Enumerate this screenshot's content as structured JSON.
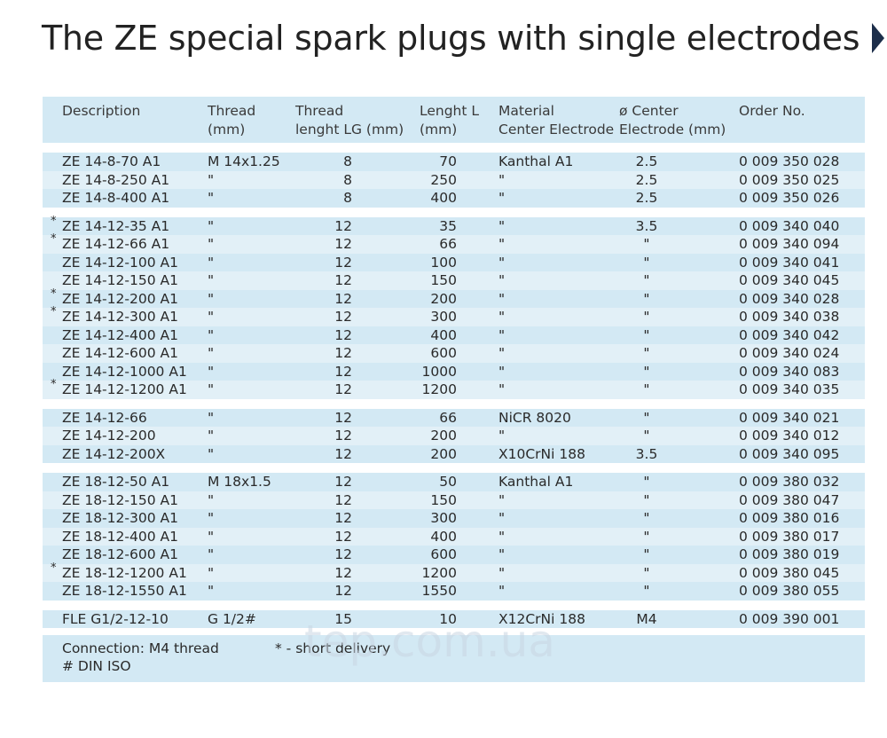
{
  "title": "The ZE special spark plugs with single electrodes",
  "watermark": "tep.com.ua",
  "headers": {
    "description": "Description",
    "thread": "Thread\n(mm)",
    "thread_length": "Thread\nlenght LG (mm)",
    "length": "Lenght L\n(mm)",
    "material": "Material\nCenter Electrode",
    "diameter": "ø Center\nElectrode (mm)",
    "order": "Order No."
  },
  "groups": [
    [
      {
        "star": "",
        "desc": "ZE 14-8-70 A1",
        "thread": "M 14x1.25",
        "lg": "8",
        "len": "70",
        "mat": "Kanthal A1",
        "dia": "2.5",
        "order": "0 009 350 028"
      },
      {
        "star": "",
        "desc": "ZE 14-8-250 A1",
        "thread": "\"",
        "lg": "8",
        "len": "250",
        "mat": "\"",
        "dia": "2.5",
        "order": "0 009 350 025"
      },
      {
        "star": "",
        "desc": "ZE 14-8-400 A1",
        "thread": "\"",
        "lg": "8",
        "len": "400",
        "mat": "\"",
        "dia": "2.5",
        "order": "0 009 350 026"
      }
    ],
    [
      {
        "star": "*",
        "desc": "ZE 14-12-35 A1",
        "thread": "\"",
        "lg": "12",
        "len": "35",
        "mat": "\"",
        "dia": "3.5",
        "order": "0 009 340 040"
      },
      {
        "star": "*",
        "desc": "ZE 14-12-66 A1",
        "thread": "\"",
        "lg": "12",
        "len": "66",
        "mat": "\"",
        "dia": "\"",
        "order": "0 009 340 094"
      },
      {
        "star": "",
        "desc": "ZE 14-12-100 A1",
        "thread": "\"",
        "lg": "12",
        "len": "100",
        "mat": "\"",
        "dia": "\"",
        "order": "0 009 340 041"
      },
      {
        "star": "",
        "desc": "ZE 14-12-150 A1",
        "thread": "\"",
        "lg": "12",
        "len": "150",
        "mat": "\"",
        "dia": "\"",
        "order": "0 009 340 045"
      },
      {
        "star": "*",
        "desc": "ZE 14-12-200 A1",
        "thread": "\"",
        "lg": "12",
        "len": "200",
        "mat": "\"",
        "dia": "\"",
        "order": "0 009 340 028"
      },
      {
        "star": "*",
        "desc": "ZE 14-12-300 A1",
        "thread": "\"",
        "lg": "12",
        "len": "300",
        "mat": "\"",
        "dia": "\"",
        "order": "0 009 340 038"
      },
      {
        "star": "",
        "desc": "ZE 14-12-400 A1",
        "thread": "\"",
        "lg": "12",
        "len": "400",
        "mat": "\"",
        "dia": "\"",
        "order": "0 009 340 042"
      },
      {
        "star": "",
        "desc": "ZE 14-12-600 A1",
        "thread": "\"",
        "lg": "12",
        "len": "600",
        "mat": "\"",
        "dia": "\"",
        "order": "0 009 340 024"
      },
      {
        "star": "",
        "desc": "ZE 14-12-1000 A1",
        "thread": "\"",
        "lg": "12",
        "len": "1000",
        "mat": "\"",
        "dia": "\"",
        "order": "0 009 340 083"
      },
      {
        "star": "*",
        "desc": "ZE 14-12-1200 A1",
        "thread": "\"",
        "lg": "12",
        "len": "1200",
        "mat": "\"",
        "dia": "\"",
        "order": "0 009 340 035"
      }
    ],
    [
      {
        "star": "",
        "desc": "ZE 14-12-66",
        "thread": "\"",
        "lg": "12",
        "len": "66",
        "mat": "NiCR 8020",
        "dia": "\"",
        "order": "0 009 340 021"
      },
      {
        "star": "",
        "desc": "ZE 14-12-200",
        "thread": "\"",
        "lg": "12",
        "len": "200",
        "mat": "\"",
        "dia": "\"",
        "order": "0 009 340 012"
      },
      {
        "star": "",
        "desc": "ZE 14-12-200X",
        "thread": "\"",
        "lg": "12",
        "len": "200",
        "mat": "X10CrNi 188",
        "dia": "3.5",
        "order": "0 009 340 095"
      }
    ],
    [
      {
        "star": "",
        "desc": "ZE 18-12-50 A1",
        "thread": "M 18x1.5",
        "lg": "12",
        "len": "50",
        "mat": "Kanthal A1",
        "dia": "\"",
        "order": "0 009 380 032"
      },
      {
        "star": "",
        "desc": "ZE 18-12-150 A1",
        "thread": "\"",
        "lg": "12",
        "len": "150",
        "mat": "\"",
        "dia": "\"",
        "order": "0 009 380 047"
      },
      {
        "star": "",
        "desc": "ZE 18-12-300 A1",
        "thread": "\"",
        "lg": "12",
        "len": "300",
        "mat": "\"",
        "dia": "\"",
        "order": "0 009 380 016"
      },
      {
        "star": "",
        "desc": "ZE 18-12-400 A1",
        "thread": "\"",
        "lg": "12",
        "len": "400",
        "mat": "\"",
        "dia": "\"",
        "order": "0 009 380 017"
      },
      {
        "star": "",
        "desc": "ZE 18-12-600 A1",
        "thread": "\"",
        "lg": "12",
        "len": "600",
        "mat": "\"",
        "dia": "\"",
        "order": "0 009 380 019"
      },
      {
        "star": "*",
        "desc": "ZE 18-12-1200 A1",
        "thread": "\"",
        "lg": "12",
        "len": "1200",
        "mat": "\"",
        "dia": "\"",
        "order": "0 009 380 045"
      },
      {
        "star": "",
        "desc": "ZE 18-12-1550 A1",
        "thread": "\"",
        "lg": "12",
        "len": "1550",
        "mat": "\"",
        "dia": "\"",
        "order": "0 009 380 055"
      }
    ],
    [
      {
        "star": "",
        "desc": "FLE G1/2-12-10",
        "thread": "G 1/2#",
        "lg": "15",
        "len": "10",
        "mat": "X12CrNi 188",
        "dia": "M4",
        "order": "0 009 390 001"
      }
    ]
  ],
  "footer": {
    "connection": "Connection: M4 thread",
    "din": "# DIN ISO",
    "short_delivery": "* - short delivery"
  }
}
